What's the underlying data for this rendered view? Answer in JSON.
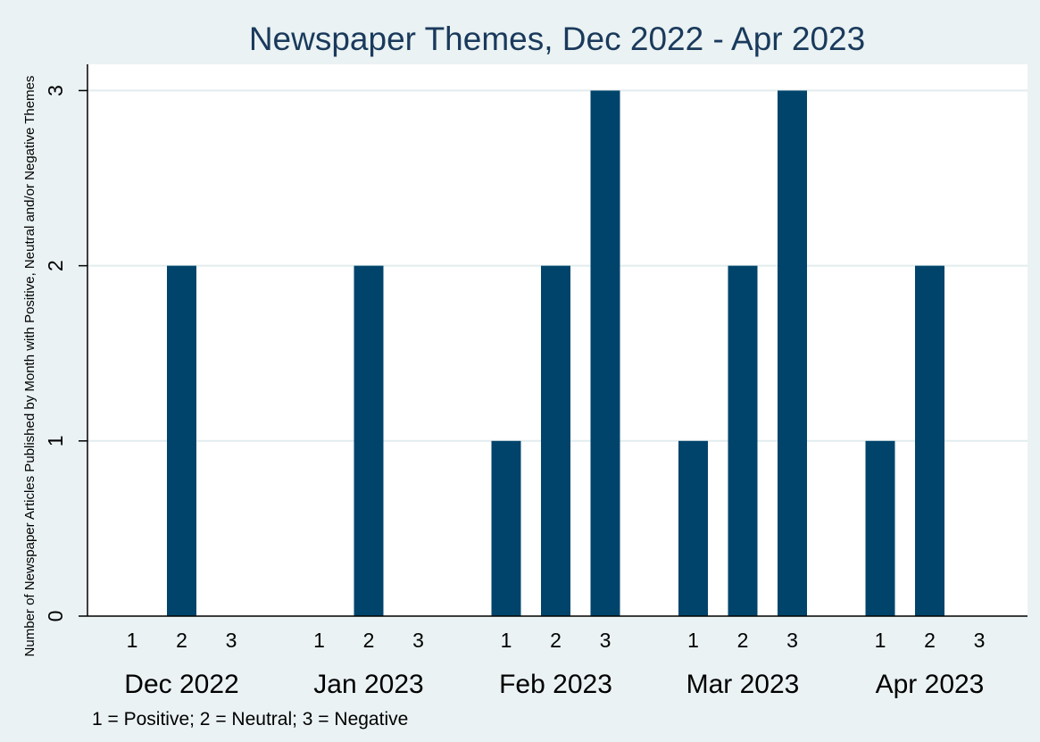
{
  "chart_data": {
    "type": "bar",
    "title": "Newspaper Themes, Dec 2022 - Apr 2023",
    "ylabel": "Number of Newspaper Articles Published by Month with Positive, Neutral and/or Negative Themes",
    "note": "1 = Positive; 2 = Neutral; 3 = Negative",
    "ylim": [
      0,
      3.15
    ],
    "yticks": [
      0,
      1,
      2,
      3
    ],
    "grid": true,
    "bar_color": "#00446b",
    "background_outer": "#eaf2f3",
    "background_plot": "#ffffff",
    "title_color": "#1a3a5c",
    "groups": [
      {
        "label": "Dec 2022",
        "categories": [
          "1",
          "2",
          "3"
        ],
        "values": [
          0,
          2,
          0
        ]
      },
      {
        "label": "Jan 2023",
        "categories": [
          "1",
          "2",
          "3"
        ],
        "values": [
          0,
          2,
          0
        ]
      },
      {
        "label": "Feb 2023",
        "categories": [
          "1",
          "2",
          "3"
        ],
        "values": [
          1,
          2,
          3
        ]
      },
      {
        "label": "Mar 2023",
        "categories": [
          "1",
          "2",
          "3"
        ],
        "values": [
          1,
          2,
          3
        ]
      },
      {
        "label": "Apr 2023",
        "categories": [
          "1",
          "2",
          "3"
        ],
        "values": [
          1,
          2,
          0
        ]
      }
    ]
  }
}
